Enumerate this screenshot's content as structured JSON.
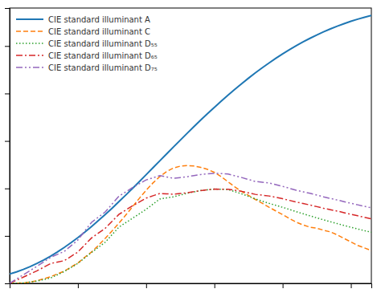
{
  "chart_data": {
    "type": "line",
    "x": [
      300,
      310,
      320,
      330,
      340,
      350,
      360,
      370,
      380,
      390,
      400,
      410,
      420,
      430,
      440,
      450,
      460,
      470,
      480,
      490,
      500,
      510,
      520,
      530,
      540,
      550,
      560,
      570,
      580,
      590,
      600,
      610,
      620,
      630,
      640,
      650,
      660,
      670,
      680,
      690,
      700,
      710,
      720,
      730,
      740,
      750,
      760,
      770,
      780,
      790,
      800,
      810,
      820,
      830
    ],
    "series": [
      {
        "name": "CIE standard illuminant A",
        "line_style": "solid",
        "values": [
          9.8,
          12.09,
          14.71,
          17.68,
          21.0,
          24.67,
          28.7,
          33.09,
          37.81,
          42.87,
          48.24,
          53.91,
          59.86,
          66.06,
          72.5,
          79.13,
          85.95,
          92.91,
          100.0,
          107.18,
          114.44,
          121.73,
          129.04,
          136.35,
          143.62,
          150.84,
          158.0,
          165.03,
          172.0,
          178.77,
          185.43,
          191.93,
          198.26,
          204.41,
          210.36,
          216.12,
          221.67,
          227.0,
          232.12,
          237.01,
          241.68,
          246.12,
          250.33,
          254.31,
          258.07,
          261.6,
          264.9,
          268.0,
          270.87,
          273.53,
          276.0,
          278.26,
          280.33,
          282.22
        ]
      },
      {
        "name": "CIE standard illuminant C",
        "line_style": "dashed",
        "values": [
          0.01,
          0.2,
          0.4,
          1.55,
          2.7,
          4.85,
          7.0,
          9.95,
          12.9,
          17.2,
          21.4,
          27.5,
          33.0,
          39.92,
          47.4,
          55.17,
          63.3,
          71.81,
          80.6,
          89.53,
          98.1,
          105.8,
          112.4,
          117.75,
          121.5,
          123.45,
          124.0,
          123.6,
          122.2,
          120.05,
          116.9,
          112.37,
          106.98,
          101.6,
          96.78,
          92.62,
          88.35,
          84.48,
          80.2,
          76.3,
          72.4,
          68.3,
          64.4,
          61.5,
          59.2,
          58.1,
          56.0,
          54.2,
          51.1,
          47.3,
          43.7,
          40.0,
          37.3,
          34.5
        ]
      },
      {
        "name": "CIE standard illuminant D₅₅",
        "line_style": "dotted",
        "values": [
          0.02,
          0.26,
          0.5,
          1.45,
          2.4,
          4.0,
          5.6,
          9.05,
          12.5,
          16.75,
          21.0,
          26.78,
          32.55,
          37.93,
          43.3,
          51.24,
          59.17,
          63.86,
          68.55,
          73.28,
          78.0,
          83.44,
          88.87,
          90.01,
          91.15,
          93.0,
          94.84,
          96.34,
          97.84,
          98.58,
          99.32,
          99.12,
          98.91,
          96.6,
          94.29,
          91.6,
          88.91,
          86.6,
          84.29,
          82.2,
          80.11,
          77.8,
          75.49,
          73.3,
          71.11,
          69.0,
          66.89,
          64.9,
          62.91,
          61.0,
          59.09,
          57.3,
          55.51,
          53.8
        ]
      },
      {
        "name": "CIE standard illuminant D₆₅",
        "line_style": "dashdot",
        "values": [
          0.03,
          3.3,
          6.6,
          9.9,
          13.2,
          17.05,
          20.9,
          22.4,
          23.9,
          28.45,
          33.0,
          40.44,
          47.88,
          52.91,
          57.94,
          65.28,
          72.61,
          77.14,
          81.67,
          85.73,
          89.78,
          92.24,
          94.7,
          94.3,
          93.89,
          94.65,
          95.4,
          96.56,
          97.71,
          98.49,
          99.26,
          99.22,
          99.17,
          98.05,
          96.92,
          95.33,
          93.74,
          92.9,
          92.05,
          90.6,
          89.15,
          87.4,
          85.65,
          84.1,
          82.55,
          80.85,
          79.14,
          77.65,
          76.15,
          74.45,
          72.74,
          71.15,
          69.56,
          67.98
        ]
      },
      {
        "name": "CIE standard illuminant D₇₅",
        "line_style": "dashdotdot",
        "values": [
          0.04,
          4.5,
          9.0,
          13.5,
          18.0,
          22.7,
          27.4,
          30.5,
          33.6,
          39.65,
          45.7,
          55.0,
          64.3,
          69.75,
          75.19,
          83.44,
          91.68,
          96.26,
          100.83,
          104.89,
          108.94,
          111.22,
          113.49,
          112.08,
          110.67,
          111.49,
          112.3,
          113.48,
          114.65,
          115.29,
          115.93,
          115.59,
          115.24,
          113.38,
          111.52,
          109.42,
          107.31,
          106.52,
          105.72,
          103.97,
          102.21,
          100.11,
          98.01,
          96.42,
          94.82,
          92.97,
          91.11,
          89.47,
          87.82,
          86.1,
          84.37,
          82.76,
          81.15,
          79.54
        ]
      }
    ],
    "xlim": [
      300,
      830
    ],
    "ylim": [
      0,
      290
    ],
    "xticks": [
      300,
      400,
      500,
      600,
      700,
      800
    ],
    "yticks": [
      0,
      50,
      100,
      150,
      200,
      250
    ],
    "tick_labels": false,
    "legend": "upper-left"
  }
}
